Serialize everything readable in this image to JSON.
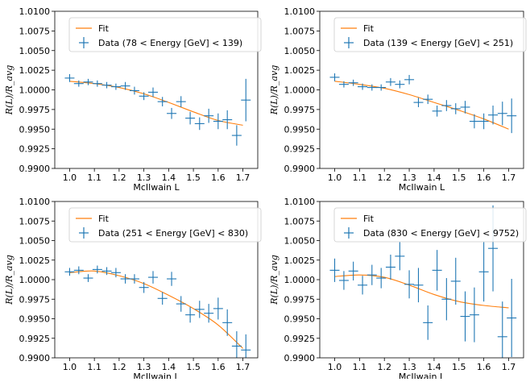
{
  "chart_data": [
    {
      "type": "scatter",
      "xlabel": "McIlwain L",
      "ylabel": "R(L)/R_avg",
      "xlim": [
        0.94,
        1.76
      ],
      "ylim": [
        0.99,
        1.01
      ],
      "xticks": [
        "1.0",
        "1.1",
        "1.2",
        "1.3",
        "1.4",
        "1.5",
        "1.6",
        "1.7"
      ],
      "yticks": [
        "0.9900",
        "0.9925",
        "0.9950",
        "0.9975",
        "1.0000",
        "1.0025",
        "1.0050",
        "1.0075",
        "1.0100"
      ],
      "legend_position": "top-left",
      "series": [
        {
          "name": "Data (78 < Energy [GeV] < 139)",
          "color": "#1f77b4",
          "x": [
            1.0,
            1.037,
            1.075,
            1.112,
            1.15,
            1.187,
            1.225,
            1.262,
            1.3,
            1.337,
            1.375,
            1.412,
            1.45,
            1.487,
            1.525,
            1.562,
            1.6,
            1.637,
            1.675,
            1.712
          ],
          "y": [
            1.0015,
            1.0008,
            1.001,
            1.0008,
            1.0006,
            1.0004,
            1.0005,
            0.9999,
            0.9992,
            0.9997,
            0.9985,
            0.997,
            0.9985,
            0.9964,
            0.9957,
            0.9967,
            0.996,
            0.9962,
            0.9942,
            0.9987
          ],
          "yerr": [
            0.0005,
            0.0004,
            0.0004,
            0.0004,
            0.0004,
            0.0004,
            0.0005,
            0.0005,
            0.0005,
            0.0006,
            0.0006,
            0.0007,
            0.0007,
            0.0008,
            0.0008,
            0.0009,
            0.001,
            0.0012,
            0.0013,
            0.0027
          ]
        },
        {
          "name": "Fit",
          "color": "#ff7f0e",
          "x": [
            1.0,
            1.1,
            1.2,
            1.3,
            1.4,
            1.5,
            1.6,
            1.7
          ],
          "y": [
            1.0011,
            1.0008,
            1.0003,
            0.9995,
            0.9984,
            0.9972,
            0.9961,
            0.9955
          ]
        }
      ]
    },
    {
      "type": "scatter",
      "xlabel": "McIlwain L",
      "ylabel": "R(L)/R_avg",
      "xlim": [
        0.94,
        1.76
      ],
      "ylim": [
        0.99,
        1.01
      ],
      "xticks": [
        "1.0",
        "1.1",
        "1.2",
        "1.3",
        "1.4",
        "1.5",
        "1.6",
        "1.7"
      ],
      "yticks": [
        "0.9900",
        "0.9925",
        "0.9950",
        "0.9975",
        "1.0000",
        "1.0025",
        "1.0050",
        "1.0075",
        "1.0100"
      ],
      "legend_position": "top-left",
      "series": [
        {
          "name": "Data (139 < Energy [GeV] < 251)",
          "color": "#1f77b4",
          "x": [
            1.0,
            1.037,
            1.075,
            1.112,
            1.15,
            1.187,
            1.225,
            1.262,
            1.3,
            1.337,
            1.375,
            1.412,
            1.45,
            1.487,
            1.525,
            1.562,
            1.6,
            1.637,
            1.675,
            1.712
          ],
          "y": [
            1.0016,
            1.0007,
            1.0009,
            1.0004,
            1.0003,
            1.0003,
            1.001,
            1.0007,
            1.0013,
            0.9984,
            0.9988,
            0.9973,
            0.998,
            0.9976,
            0.9978,
            0.996,
            0.996,
            0.9968,
            0.997,
            0.9967
          ],
          "yerr": [
            0.0005,
            0.0004,
            0.0004,
            0.0004,
            0.0004,
            0.0004,
            0.0005,
            0.0005,
            0.0006,
            0.0006,
            0.0006,
            0.0007,
            0.0007,
            0.0007,
            0.0008,
            0.0009,
            0.001,
            0.0012,
            0.0015,
            0.0022
          ]
        },
        {
          "name": "Fit",
          "color": "#ff7f0e",
          "x": [
            1.0,
            1.1,
            1.2,
            1.3,
            1.4,
            1.5,
            1.6,
            1.7
          ],
          "y": [
            1.0011,
            1.0007,
            1.0002,
            0.9994,
            0.9984,
            0.9974,
            0.9963,
            0.995
          ]
        }
      ]
    },
    {
      "type": "scatter",
      "xlabel": "McIlwain L",
      "ylabel": "R(L)/R_avg",
      "xlim": [
        0.94,
        1.76
      ],
      "ylim": [
        0.99,
        1.01
      ],
      "xticks": [
        "1.0",
        "1.1",
        "1.2",
        "1.3",
        "1.4",
        "1.5",
        "1.6",
        "1.7"
      ],
      "yticks": [
        "0.9900",
        "0.9925",
        "0.9950",
        "0.9975",
        "1.0000",
        "1.0025",
        "1.0050",
        "1.0075",
        "1.0100"
      ],
      "legend_position": "top-left",
      "series": [
        {
          "name": "Data (251 < Energy [GeV] < 830)",
          "color": "#1f77b4",
          "x": [
            1.0,
            1.037,
            1.075,
            1.112,
            1.15,
            1.187,
            1.225,
            1.262,
            1.3,
            1.337,
            1.375,
            1.412,
            1.45,
            1.487,
            1.525,
            1.562,
            1.6,
            1.637,
            1.675,
            1.712
          ],
          "y": [
            1.001,
            1.0012,
            1.0002,
            1.0013,
            1.0011,
            1.0009,
            1.0001,
            1.0001,
            0.999,
            1.0003,
            0.9976,
            1.0001,
            0.9969,
            0.9955,
            0.9962,
            0.9957,
            0.9963,
            0.9945,
            0.9915,
            0.991
          ],
          "yerr": [
            0.0005,
            0.0005,
            0.0005,
            0.0005,
            0.0005,
            0.0006,
            0.0006,
            0.0006,
            0.0007,
            0.0008,
            0.0008,
            0.0009,
            0.001,
            0.001,
            0.0011,
            0.0012,
            0.0014,
            0.0017,
            0.0019,
            0.002
          ]
        },
        {
          "name": "Fit",
          "color": "#ff7f0e",
          "x": [
            1.0,
            1.1,
            1.2,
            1.3,
            1.4,
            1.5,
            1.6,
            1.7
          ],
          "y": [
            1.0009,
            1.0011,
            1.0005,
            0.9995,
            0.998,
            0.9963,
            0.9942,
            0.9912
          ]
        }
      ]
    },
    {
      "type": "scatter",
      "xlabel": "McIlwain L",
      "ylabel": "R(L)/R_avg",
      "xlim": [
        0.94,
        1.76
      ],
      "ylim": [
        0.99,
        1.01
      ],
      "xticks": [
        "1.0",
        "1.1",
        "1.2",
        "1.3",
        "1.4",
        "1.5",
        "1.6",
        "1.7"
      ],
      "yticks": [
        "0.9900",
        "0.9925",
        "0.9950",
        "0.9975",
        "1.0000",
        "1.0025",
        "1.0050",
        "1.0075",
        "1.0100"
      ],
      "legend_position": "top-left",
      "series": [
        {
          "name": "Data (830 < Energy [GeV] < 9752)",
          "color": "#1f77b4",
          "x": [
            1.0,
            1.037,
            1.075,
            1.112,
            1.15,
            1.187,
            1.225,
            1.262,
            1.3,
            1.337,
            1.375,
            1.412,
            1.45,
            1.487,
            1.525,
            1.562,
            1.6,
            1.637,
            1.675,
            1.712
          ],
          "y": [
            1.0012,
            0.9999,
            1.0011,
            0.9993,
            1.0006,
            1.0002,
            1.0016,
            1.003,
            0.9994,
            0.9993,
            0.9945,
            1.0012,
            0.9975,
            0.9998,
            0.9953,
            0.9955,
            1.001,
            1.004,
            0.9927,
            0.9951
          ],
          "yerr": [
            0.0015,
            0.0012,
            0.0012,
            0.0012,
            0.0013,
            0.0013,
            0.0016,
            0.0018,
            0.0018,
            0.0022,
            0.0022,
            0.0026,
            0.0027,
            0.003,
            0.0032,
            0.0035,
            0.0038,
            0.0055,
            0.0045,
            0.005
          ]
        },
        {
          "name": "Fit",
          "color": "#ff7f0e",
          "x": [
            1.0,
            1.1,
            1.2,
            1.3,
            1.4,
            1.5,
            1.6,
            1.7
          ],
          "y": [
            1.0004,
            1.0006,
            1.0003,
            0.9993,
            0.9981,
            0.9972,
            0.9967,
            0.9964
          ]
        }
      ]
    }
  ]
}
